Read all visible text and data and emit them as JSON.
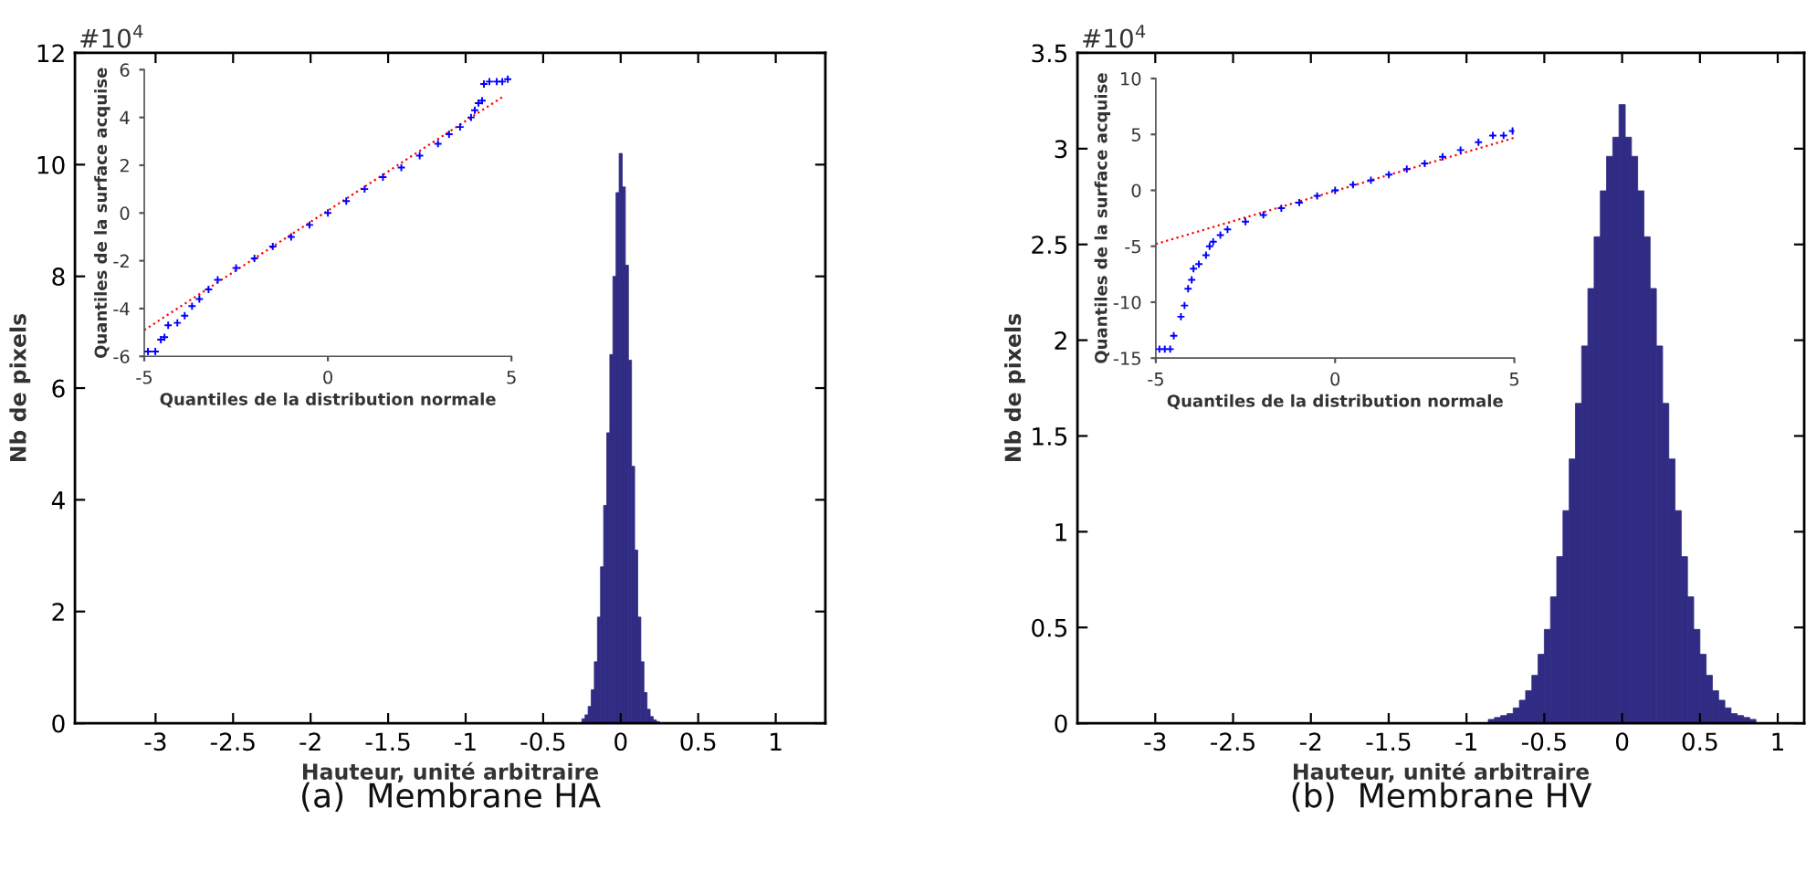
{
  "chart_data": [
    {
      "type": "histogram",
      "title": "(a)  Membrane HA",
      "xlabel": "Hauteur, unité arbitraire",
      "ylabel": "Nb de pixels",
      "annotations": [
        "#10$^{4}$"
      ],
      "bins": [
        -0.25,
        -0.23,
        -0.21,
        -0.19,
        -0.17,
        -0.15,
        -0.13,
        -0.11,
        -0.09,
        -0.07,
        -0.05,
        -0.03,
        -0.01,
        0.01,
        0.03,
        0.05,
        0.07,
        0.09,
        0.11,
        0.13,
        0.15,
        0.17,
        0.19,
        0.21,
        0.23,
        0.25
      ],
      "values": [
        0.08,
        0.15,
        0.3,
        0.6,
        1.1,
        1.9,
        2.8,
        3.9,
        5.2,
        6.6,
        8.0,
        9.5,
        10.2,
        9.6,
        8.2,
        6.5,
        4.6,
        3.1,
        1.9,
        1.1,
        0.55,
        0.25,
        0.12,
        0.06,
        0.03
      ],
      "color": "#312c83",
      "xlim": [
        -3.52,
        1.32
      ],
      "xticks": [
        -3,
        -2.5,
        -2,
        -1.5,
        -1,
        -0.5,
        0,
        0.5,
        1
      ],
      "ylim": [
        0,
        12
      ],
      "yticks": [
        0,
        2,
        4,
        6,
        8,
        10,
        12
      ],
      "grid": false
    },
    {
      "type": "scatter",
      "xlabel": "Quantiles de la distribution normale",
      "ylabel": "Quantiles de la surface acquise",
      "series": [
        {
          "type": "scatter",
          "marker": "cross",
          "color": "#0000ff",
          "x": [
            -4.9,
            -4.7,
            -4.55,
            -4.45,
            -4.35,
            -4.1,
            -3.9,
            -3.7,
            -3.5,
            -3.25,
            -3,
            -2.5,
            -2,
            -1.5,
            -1,
            -0.5,
            0,
            0.5,
            1,
            1.5,
            2,
            2.5,
            3,
            3.3,
            3.6,
            3.9,
            4.0,
            4.1,
            4.2,
            4.25,
            4.4,
            4.6,
            4.75,
            4.9
          ],
          "values": [
            -5.8,
            -5.8,
            -5.3,
            -5.2,
            -4.7,
            -4.6,
            -4.3,
            -3.9,
            -3.6,
            -3.2,
            -2.8,
            -2.3,
            -1.9,
            -1.4,
            -1.0,
            -0.5,
            0,
            0.5,
            1.0,
            1.5,
            1.9,
            2.4,
            2.9,
            3.3,
            3.6,
            4.0,
            4.3,
            4.6,
            4.7,
            5.4,
            5.5,
            5.5,
            5.5,
            5.6
          ]
        },
        {
          "type": "line",
          "color": "#ff0000",
          "line_style": "dotted",
          "x": [
            -5,
            4.8
          ],
          "values": [
            -4.9,
            4.9
          ]
        }
      ],
      "xlim": [
        -5,
        5
      ],
      "xticks": [
        -5,
        0,
        5
      ],
      "ylim": [
        -6,
        6
      ],
      "yticks": [
        -6,
        -4,
        -2,
        0,
        2,
        4,
        6
      ],
      "grid": false
    },
    {
      "type": "histogram",
      "title": "(b)  Membrane HV",
      "xlabel": "Hauteur, unité arbitraire",
      "ylabel": "Nb de pixels",
      "annotations": [
        "#10$^{4}$"
      ],
      "bins": [
        -0.86,
        -0.82,
        -0.78,
        -0.74,
        -0.7,
        -0.66,
        -0.62,
        -0.58,
        -0.54,
        -0.5,
        -0.46,
        -0.42,
        -0.38,
        -0.34,
        -0.3,
        -0.26,
        -0.22,
        -0.18,
        -0.14,
        -0.1,
        -0.06,
        -0.02,
        0.02,
        0.06,
        0.1,
        0.14,
        0.18,
        0.22,
        0.26,
        0.3,
        0.34,
        0.38,
        0.42,
        0.46,
        0.5,
        0.54,
        0.58,
        0.62,
        0.66,
        0.7,
        0.74,
        0.78,
        0.82,
        0.86
      ],
      "values": [
        0.02,
        0.03,
        0.04,
        0.05,
        0.08,
        0.12,
        0.17,
        0.25,
        0.36,
        0.49,
        0.66,
        0.87,
        1.11,
        1.38,
        1.67,
        1.97,
        2.27,
        2.54,
        2.78,
        2.96,
        3.06,
        3.23,
        3.06,
        2.96,
        2.78,
        2.54,
        2.27,
        1.97,
        1.67,
        1.38,
        1.11,
        0.87,
        0.66,
        0.49,
        0.36,
        0.25,
        0.17,
        0.12,
        0.08,
        0.05,
        0.04,
        0.03,
        0.02
      ],
      "color": "#312c83",
      "xlim": [
        -3.5,
        1.17
      ],
      "xticks": [
        -3,
        -2.5,
        -2,
        -1.5,
        -1,
        -0.5,
        0,
        0.5,
        1
      ],
      "ylim": [
        0,
        3.5
      ],
      "yticks": [
        0,
        0.5,
        1,
        1.5,
        2,
        2.5,
        3,
        3.5
      ],
      "grid": false
    },
    {
      "type": "scatter",
      "xlabel": "Quantiles de la distribution normale",
      "ylabel": "Quantiles de la surface acquise",
      "series": [
        {
          "type": "scatter",
          "marker": "cross",
          "color": "#0000ff",
          "x": [
            -4.9,
            -4.75,
            -4.6,
            -4.5,
            -4.3,
            -4.2,
            -4.1,
            -4.0,
            -3.95,
            -3.8,
            -3.6,
            -3.5,
            -3.4,
            -3.2,
            -3,
            -2.5,
            -2,
            -1.5,
            -1,
            -0.5,
            0,
            0.5,
            1,
            1.5,
            2,
            2.5,
            3,
            3.5,
            4,
            4.4,
            4.7,
            4.95
          ],
          "values": [
            -14.2,
            -14.2,
            -14.2,
            -13.0,
            -11.3,
            -10.3,
            -8.8,
            -8.0,
            -7.0,
            -6.6,
            -5.8,
            -5.0,
            -4.6,
            -4.0,
            -3.5,
            -2.8,
            -2.2,
            -1.6,
            -1.1,
            -0.5,
            0,
            0.5,
            0.9,
            1.4,
            1.9,
            2.4,
            3.0,
            3.6,
            4.3,
            4.9,
            4.9,
            5.3
          ]
        },
        {
          "type": "line",
          "color": "#ff0000",
          "line_style": "dotted",
          "x": [
            -5,
            5
          ],
          "values": [
            -4.8,
            4.7
          ]
        }
      ],
      "xlim": [
        -5,
        5
      ],
      "xticks": [
        -5,
        0,
        5
      ],
      "ylim": [
        -15,
        10
      ],
      "yticks": [
        -15,
        -10,
        -5,
        0,
        5,
        10
      ],
      "grid": false
    }
  ]
}
